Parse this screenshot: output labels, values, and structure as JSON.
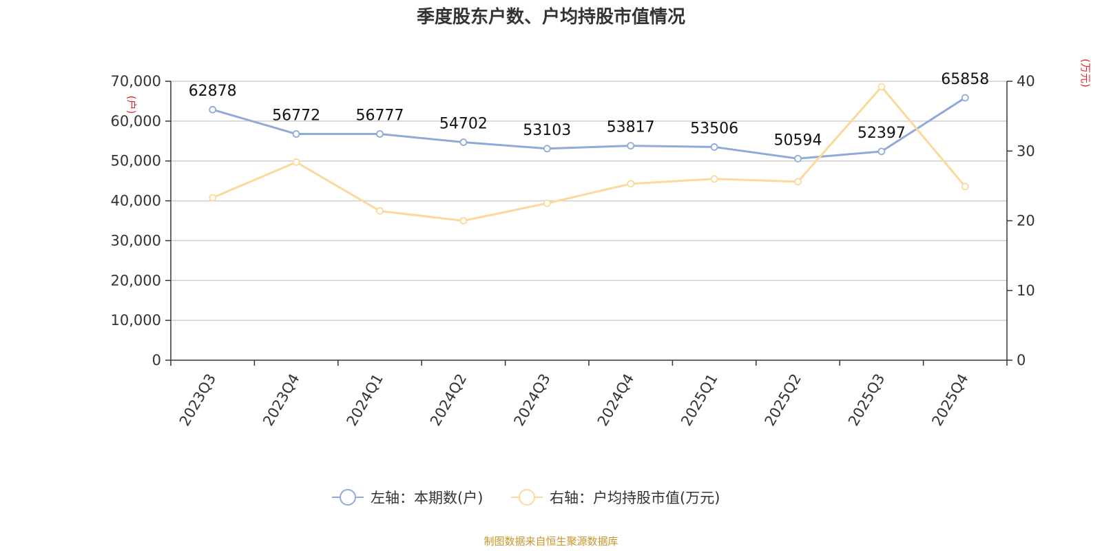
{
  "chart_data": {
    "type": "line",
    "title": "季度股东户数、户均持股市值情况",
    "categories": [
      "2023Q3",
      "2023Q4",
      "2024Q1",
      "2024Q2",
      "2024Q3",
      "2024Q4",
      "2025Q1",
      "2025Q2",
      "2025Q3",
      "2025Q4"
    ],
    "left_axis": {
      "unit": "(户)",
      "ylim": [
        0,
        70000
      ],
      "ticks": [
        0,
        10000,
        20000,
        30000,
        40000,
        50000,
        60000,
        70000
      ],
      "tick_labels": [
        "0",
        "10,000",
        "20,000",
        "30,000",
        "40,000",
        "50,000",
        "60,000",
        "70,000"
      ]
    },
    "right_axis": {
      "unit": "(万元)",
      "ylim": [
        0,
        40
      ],
      "ticks": [
        0,
        10,
        20,
        30,
        40
      ],
      "tick_labels": [
        "0",
        "10",
        "20",
        "30",
        "40"
      ]
    },
    "series": [
      {
        "name": "左轴：本期数(户)",
        "axis": "left",
        "color": "#8eaad8",
        "values": [
          62878,
          56772,
          56777,
          54702,
          53103,
          53817,
          53506,
          50594,
          52397,
          65858
        ],
        "data_labels": [
          "62878",
          "56772",
          "56777",
          "54702",
          "53103",
          "53817",
          "53506",
          "50594",
          "52397",
          "65858"
        ]
      },
      {
        "name": "右轴：户均持股市值(万元)",
        "axis": "right",
        "color": "#fad99b",
        "values": [
          23.3,
          28.4,
          21.4,
          20.0,
          22.5,
          25.3,
          26.0,
          25.6,
          39.2,
          24.9
        ]
      }
    ],
    "grid": true,
    "legend_position": "bottom-center"
  },
  "source": "制图数据来自恒生聚源数据库"
}
